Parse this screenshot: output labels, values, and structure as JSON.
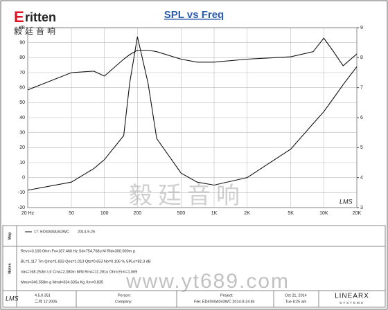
{
  "logo": {
    "brand": "ritten",
    "chinese": "毅廷音响"
  },
  "watermark": {
    "chinese": "毅廷音响",
    "url": "www.yt689.com"
  },
  "chart_data": {
    "type": "line",
    "title": "SPL vs Freq",
    "log_x": true,
    "grid": true,
    "x": [
      20,
      50,
      80,
      100,
      150,
      170,
      200,
      250,
      300,
      500,
      700,
      1000,
      2000,
      5000,
      8000,
      10000,
      12000,
      15000,
      20000
    ],
    "series": [
      {
        "color": "#111111",
        "values": [
          58.5,
          70,
          71,
          67.7,
          79,
          82,
          85,
          85,
          84,
          79,
          77,
          77,
          79,
          80.6,
          84,
          93,
          85,
          74.6,
          82.5
        ]
      },
      {
        "color": "#111111",
        "axis": "y2",
        "values": [
          3.58,
          3.85,
          4.3,
          4.6,
          5.4,
          7.15,
          8.7,
          7.15,
          5.3,
          4.15,
          3.85,
          3.75,
          4.0,
          4.95,
          5.8,
          6.2,
          6.6,
          7.1,
          7.7
        ]
      }
    ],
    "xlim": [
      20,
      20000
    ],
    "xticks": [
      {
        "value": 20,
        "label": "20 Hz"
      },
      50,
      100,
      200,
      500,
      {
        "value": 1000,
        "label": "1K"
      },
      {
        "value": 2000,
        "label": "2K"
      },
      {
        "value": 5000,
        "label": "5K"
      },
      {
        "value": 10000,
        "label": "10K"
      },
      {
        "value": 20000,
        "label": "20K"
      }
    ],
    "ylim": [
      -20,
      100
    ],
    "yticks": [
      -20,
      -10,
      0,
      10,
      20,
      30,
      40,
      50,
      60,
      70,
      80,
      90,
      {
        "value": 100,
        "label": "dB"
      }
    ],
    "y2lim": [
      3,
      9
    ],
    "y2ticks": [
      3,
      4,
      5,
      6,
      7,
      8,
      9
    ]
  },
  "plot_badge": "LMS",
  "map": {
    "label": "Map",
    "legend": "17: ED4040A043WC",
    "date": "2014-9-25"
  },
  "notes": {
    "label": "Notes",
    "lines": [
      "Revc=3.100 Ohm  Fo=187.460 Hz  Sd=754.768u M  Rld=300.000m g",
      "BL=1.117 Tm  Qms=1.833  Qes=1.013  Qts=0.653  No=0.106 %  SPLo=82.3 dB",
      "Vas=168.253m Ltr  Cms=2.080m M/N  Rms=11.281u Ohm  Erm=1.069",
      "Mms=346.558m g  Mmd=334.635u Kg  Xm=0.835"
    ]
  },
  "footer": {
    "software": "LMS",
    "version": "4.5.0.351",
    "build": "二月 12 2005",
    "person": "Person:",
    "company": "Company:",
    "project": "Project:",
    "file": "File: ED4040A043WC   2014-9-24.lib",
    "date": "Oct 21, 2014",
    "time": "Tue  8:25 am",
    "brand": "LINEARX",
    "brand_sub": "SYSTEMS"
  }
}
